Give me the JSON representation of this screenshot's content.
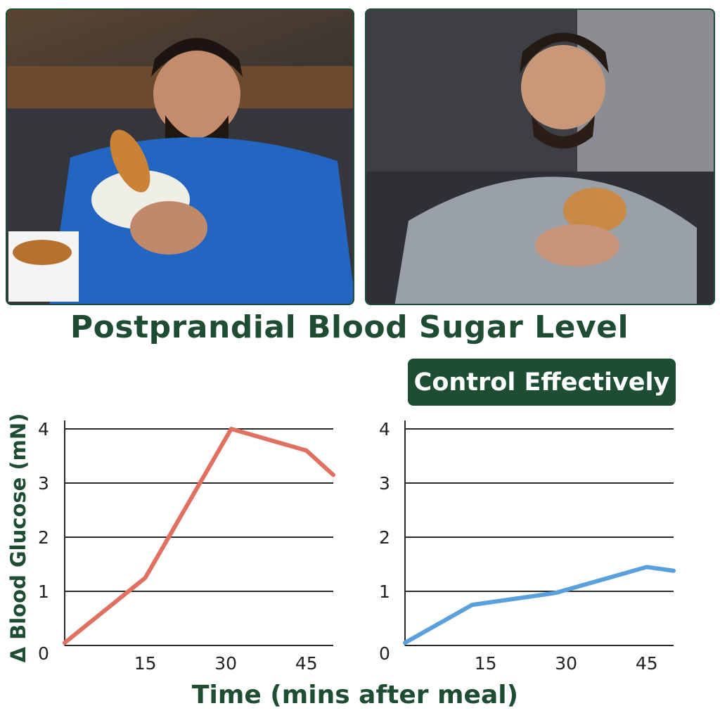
{
  "title": "Postprandial Blood Sugar Level",
  "badge": "Control Effectively",
  "photos": {
    "left": "man eating ice cream and churros on couch",
    "right": "man eating a sandwich on couch"
  },
  "colors": {
    "title_green": "#1e4d34",
    "badge_bg": "#1d4d33",
    "left_series": "#e07060",
    "right_series": "#5aa0dc"
  },
  "chart_data": [
    {
      "type": "line",
      "title": "",
      "xlabel": "Time (mins after meal)",
      "ylabel": "Δ Blood Glucose (mN)",
      "xlim": [
        0,
        50
      ],
      "ylim": [
        0,
        4
      ],
      "xticks": [
        15,
        30,
        45
      ],
      "yticks": [
        0,
        1,
        2,
        3,
        4
      ],
      "grid": true,
      "series": [
        {
          "x": [
            0,
            15,
            31,
            45,
            50
          ],
          "values": [
            0.05,
            1.25,
            4.0,
            3.6,
            3.15
          ],
          "color": "#e07060"
        }
      ]
    },
    {
      "type": "line",
      "title": "Control Effectively",
      "xlabel": "Time (mins after meal)",
      "ylabel": "",
      "xlim": [
        0,
        50
      ],
      "ylim": [
        0,
        4
      ],
      "xticks": [
        15,
        30,
        45
      ],
      "yticks": [
        0,
        1,
        2,
        3,
        4
      ],
      "grid": true,
      "series": [
        {
          "x": [
            0,
            12.5,
            28,
            45,
            50
          ],
          "values": [
            0.05,
            0.75,
            0.97,
            1.45,
            1.38
          ],
          "color": "#5aa0dc"
        }
      ]
    }
  ]
}
